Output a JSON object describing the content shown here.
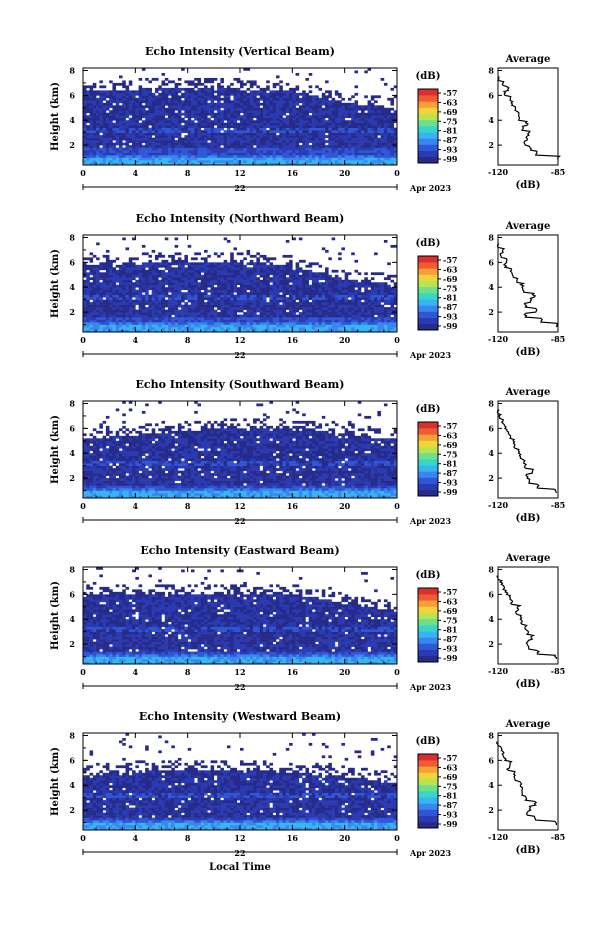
{
  "colors": {
    "colorbar": [
      "#262b8a",
      "#2a3ab0",
      "#2f56d6",
      "#3a85f0",
      "#36b6f0",
      "#39d6c8",
      "#6fe08a",
      "#b9e34f",
      "#f0d43a",
      "#f7a03a",
      "#f25a33",
      "#d6312f"
    ],
    "speck": "#ffffff",
    "text": "#000000"
  },
  "chart_data": [
    {
      "type": "heatmap",
      "title": "Echo Intensity (Vertical Beam)",
      "ylabel": "Height (km)",
      "xlabel": "",
      "x_ticks": [
        "0",
        "4",
        "8",
        "12",
        "16",
        "20",
        "0"
      ],
      "y_ticks": [
        "2",
        "4",
        "6",
        "8"
      ],
      "xlim": [
        0,
        24
      ],
      "ylim": [
        0.4,
        8.2
      ],
      "date_center": "22",
      "date_right": "Apr 2023",
      "colorbar": {
        "unit": "(dB)",
        "ticks": [
          "-57",
          "-63",
          "-69",
          "-75",
          "-81",
          "-87",
          "-93",
          "-99"
        ]
      },
      "profile": {
        "title": "Average",
        "xlabel": "(dB)",
        "x_ticks": [
          "-120",
          "-85"
        ],
        "xlim": [
          -120,
          -85
        ],
        "y_ticks": [
          "2",
          "4",
          "6",
          "8"
        ],
        "heights": [
          0.8,
          1.2,
          1.6,
          2.0,
          2.4,
          2.8,
          3.2,
          3.6,
          4.0,
          4.4,
          4.8,
          5.2,
          5.6,
          6.0,
          6.4,
          6.8,
          7.2
        ],
        "values": [
          -85,
          -98,
          -101,
          -104,
          -103,
          -102,
          -106,
          -103,
          -108,
          -108,
          -110,
          -112,
          -113,
          -116,
          -114,
          -117,
          -120
        ]
      },
      "field": {
        "base": [
          1.0,
          1.3,
          1.8
        ],
        "top": [
          6.3,
          6.5,
          6.6,
          6.5,
          6.3,
          5.4,
          5.0
        ]
      }
    },
    {
      "type": "heatmap",
      "title": "Echo Intensity (Northward Beam)",
      "ylabel": "Height (km)",
      "xlabel": "",
      "x_ticks": [
        "0",
        "4",
        "8",
        "12",
        "16",
        "20",
        "0"
      ],
      "y_ticks": [
        "2",
        "4",
        "6",
        "8"
      ],
      "xlim": [
        0,
        24
      ],
      "ylim": [
        0.4,
        8.2
      ],
      "date_center": "22",
      "date_right": "Apr 2023",
      "colorbar": {
        "unit": "(dB)",
        "ticks": [
          "-57",
          "-63",
          "-69",
          "-75",
          "-81",
          "-87",
          "-93",
          "-99"
        ]
      },
      "profile": {
        "title": "Average",
        "xlabel": "(dB)",
        "x_ticks": [
          "-120",
          "-85"
        ],
        "xlim": [
          -120,
          -85
        ],
        "y_ticks": [
          "2",
          "4",
          "6",
          "8"
        ],
        "heights": [
          0.8,
          1.2,
          1.6,
          2.0,
          2.4,
          2.8,
          3.2,
          3.6,
          4.0,
          4.4,
          4.8,
          5.2,
          5.6,
          6.0,
          6.4,
          6.8,
          7.2
        ],
        "values": [
          -86,
          -95,
          -104,
          -98,
          -104,
          -101,
          -99,
          -105,
          -106,
          -109,
          -111,
          -112,
          -116,
          -115,
          -118,
          -117,
          -120
        ]
      },
      "field": {
        "base": [
          1.0,
          1.2,
          1.6
        ],
        "top": [
          5.8,
          5.9,
          6.0,
          6.0,
          5.7,
          4.6,
          4.2
        ]
      }
    },
    {
      "type": "heatmap",
      "title": "Echo Intensity (Southward Beam)",
      "ylabel": "Height (km)",
      "xlabel": "",
      "x_ticks": [
        "0",
        "4",
        "8",
        "12",
        "16",
        "20",
        "0"
      ],
      "y_ticks": [
        "2",
        "4",
        "6",
        "8"
      ],
      "xlim": [
        0,
        24
      ],
      "ylim": [
        0.4,
        8.2
      ],
      "date_center": "22",
      "date_right": "Apr 2023",
      "colorbar": {
        "unit": "(dB)",
        "ticks": [
          "-57",
          "-63",
          "-69",
          "-75",
          "-81",
          "-87",
          "-93",
          "-99"
        ]
      },
      "profile": {
        "title": "Average",
        "xlabel": "(dB)",
        "x_ticks": [
          "-120",
          "-85"
        ],
        "xlim": [
          -120,
          -85
        ],
        "y_ticks": [
          "2",
          "4",
          "6",
          "8"
        ],
        "heights": [
          0.8,
          1.2,
          1.6,
          2.0,
          2.4,
          2.8,
          3.2,
          3.6,
          4.0,
          4.4,
          4.8,
          5.2,
          5.6,
          6.0,
          6.4,
          6.8,
          7.2
        ],
        "values": [
          -86,
          -97,
          -102,
          -103,
          -100,
          -104,
          -105,
          -107,
          -108,
          -110,
          -111,
          -113,
          -114,
          -116,
          -117,
          -119,
          -120
        ]
      },
      "field": {
        "base": [
          1.0,
          1.2,
          1.5
        ],
        "top": [
          5.2,
          5.5,
          5.8,
          6.0,
          5.9,
          5.6,
          5.0
        ]
      }
    },
    {
      "type": "heatmap",
      "title": "Echo Intensity (Eastward Beam)",
      "ylabel": "Height (km)",
      "xlabel": "",
      "x_ticks": [
        "0",
        "4",
        "8",
        "12",
        "16",
        "20",
        "0"
      ],
      "y_ticks": [
        "2",
        "4",
        "6",
        "8"
      ],
      "xlim": [
        0,
        24
      ],
      "ylim": [
        0.4,
        8.2
      ],
      "date_center": "22",
      "date_right": "Apr 2023",
      "colorbar": {
        "unit": "(dB)",
        "ticks": [
          "-57",
          "-63",
          "-69",
          "-75",
          "-81",
          "-87",
          "-93",
          "-99"
        ]
      },
      "profile": {
        "title": "Average",
        "xlabel": "(dB)",
        "x_ticks": [
          "-120",
          "-85"
        ],
        "xlim": [
          -120,
          -85
        ],
        "y_ticks": [
          "2",
          "4",
          "6",
          "8"
        ],
        "heights": [
          0.8,
          1.2,
          1.6,
          2.0,
          2.4,
          2.8,
          3.2,
          3.6,
          4.0,
          4.4,
          4.8,
          5.2,
          5.6,
          6.0,
          6.4,
          6.8,
          7.2
        ],
        "values": [
          -86,
          -97,
          -102,
          -103,
          -100,
          -103,
          -104,
          -106,
          -107,
          -109,
          -108,
          -112,
          -113,
          -115,
          -117,
          -118,
          -120
        ]
      },
      "field": {
        "base": [
          1.0,
          1.2,
          1.4
        ],
        "top": [
          5.9,
          6.0,
          6.1,
          6.1,
          6.0,
          5.3,
          4.6
        ]
      }
    },
    {
      "type": "heatmap",
      "title": "Echo Intensity (Westward Beam)",
      "ylabel": "Height (km)",
      "xlabel": "Local Time",
      "x_ticks": [
        "0",
        "4",
        "8",
        "12",
        "16",
        "20",
        "0"
      ],
      "y_ticks": [
        "2",
        "4",
        "6",
        "8"
      ],
      "xlim": [
        0,
        24
      ],
      "ylim": [
        0.4,
        8.2
      ],
      "date_center": "22",
      "date_right": "Apr 2023",
      "colorbar": {
        "unit": "(dB)",
        "ticks": [
          "-57",
          "-63",
          "-69",
          "-75",
          "-81",
          "-87",
          "-93",
          "-99"
        ]
      },
      "profile": {
        "title": "Average",
        "xlabel": "(dB)",
        "x_ticks": [
          "-120",
          "-85"
        ],
        "xlim": [
          -120,
          -85
        ],
        "y_ticks": [
          "2",
          "4",
          "6",
          "8"
        ],
        "heights": [
          0.8,
          1.2,
          1.6,
          2.0,
          2.4,
          2.8,
          3.2,
          3.6,
          4.0,
          4.4,
          4.8,
          5.2,
          5.6,
          6.0,
          6.4,
          6.8,
          7.2
        ],
        "values": [
          -86,
          -98,
          -103,
          -101,
          -98,
          -104,
          -106,
          -106,
          -107,
          -110,
          -110,
          -114,
          -113,
          -116,
          -117,
          -118,
          -120
        ]
      },
      "field": {
        "base": [
          1.0,
          1.2,
          1.4
        ],
        "top": [
          4.8,
          5.1,
          5.2,
          5.2,
          5.0,
          4.7,
          4.2
        ]
      }
    }
  ]
}
